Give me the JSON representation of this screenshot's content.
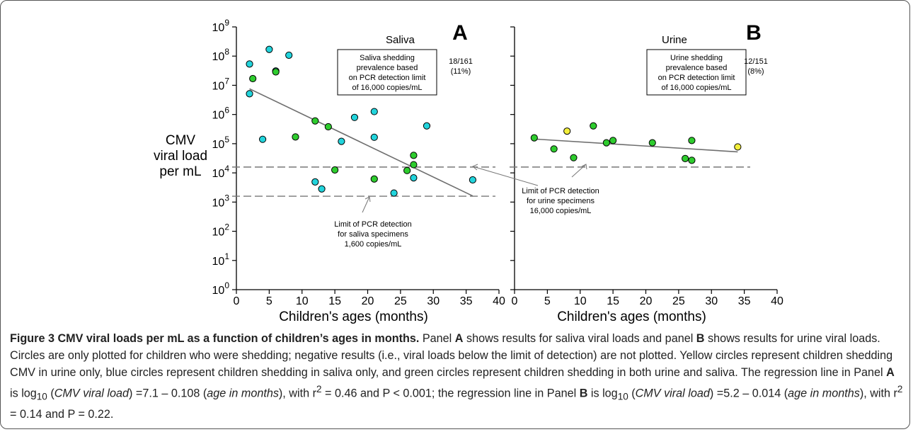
{
  "chart_data": [
    {
      "type": "scatter",
      "panel": "A",
      "title": "Saliva",
      "xlabel": "Children's ages (months)",
      "ylabel": [
        "CMV",
        "viral load",
        "per mL"
      ],
      "xlim": [
        0,
        40
      ],
      "ylim_log10": [
        0,
        9
      ],
      "xticks": [
        "0",
        "5",
        "10",
        "15",
        "20",
        "25",
        "30",
        "35",
        "40"
      ],
      "yticks": [
        "0",
        "1",
        "2",
        "3",
        "4",
        "5",
        "6",
        "7",
        "8",
        "9"
      ],
      "y_scale": "log10",
      "series": [
        {
          "color": "#22d4dc",
          "points": [
            {
              "x": 2,
              "y": 7.73
            },
            {
              "x": 2,
              "y": 6.71
            },
            {
              "x": 4,
              "y": 5.15
            },
            {
              "x": 5,
              "y": 8.23
            },
            {
              "x": 6,
              "y": 7.49
            },
            {
              "x": 8,
              "y": 8.03
            },
            {
              "x": 12,
              "y": 3.69
            },
            {
              "x": 13,
              "y": 3.45
            },
            {
              "x": 16,
              "y": 5.08
            },
            {
              "x": 18,
              "y": 5.9
            },
            {
              "x": 21,
              "y": 6.1
            },
            {
              "x": 21,
              "y": 5.22
            },
            {
              "x": 24,
              "y": 3.31
            },
            {
              "x": 27,
              "y": 3.83
            },
            {
              "x": 29,
              "y": 5.61
            },
            {
              "x": 36,
              "y": 3.76
            }
          ]
        },
        {
          "color": "#2ecc2e",
          "points": [
            {
              "x": 2.5,
              "y": 7.23
            },
            {
              "x": 6,
              "y": 7.46
            },
            {
              "x": 9,
              "y": 5.23
            },
            {
              "x": 12,
              "y": 5.78
            },
            {
              "x": 14,
              "y": 5.58
            },
            {
              "x": 15,
              "y": 4.1
            },
            {
              "x": 21,
              "y": 3.79
            },
            {
              "x": 26,
              "y": 4.08
            },
            {
              "x": 27,
              "y": 4.6
            },
            {
              "x": 27,
              "y": 4.28
            }
          ]
        }
      ],
      "regression": {
        "x": [
          2,
          36
        ],
        "y": [
          6.88,
          3.21
        ]
      },
      "detection_limits": [
        4.2,
        3.2
      ],
      "box": [
        "Saliva shedding",
        "prevalence based",
        "on PCR detection limit",
        "of 16,000 copies/mL"
      ],
      "box_stat": [
        "18/161",
        "(11%)"
      ],
      "annotation": [
        "Limit of PCR detection",
        "for saliva specimens",
        "1,600 copies/mL"
      ]
    },
    {
      "type": "scatter",
      "panel": "B",
      "title": "Urine",
      "xlabel": "Children's ages (months)",
      "xlim": [
        0,
        40
      ],
      "ylim_log10": [
        0,
        9
      ],
      "xticks": [
        "0",
        "5",
        "10",
        "15",
        "20",
        "25",
        "30",
        "35",
        "40"
      ],
      "y_scale": "log10",
      "series": [
        {
          "color": "#2ecc2e",
          "points": [
            {
              "x": 3,
              "y": 5.2
            },
            {
              "x": 6,
              "y": 4.82
            },
            {
              "x": 9,
              "y": 4.52
            },
            {
              "x": 12,
              "y": 5.61
            },
            {
              "x": 14,
              "y": 5.03
            },
            {
              "x": 15,
              "y": 5.11
            },
            {
              "x": 21,
              "y": 5.03
            },
            {
              "x": 26,
              "y": 4.49
            },
            {
              "x": 27,
              "y": 4.43
            },
            {
              "x": 27,
              "y": 5.11
            }
          ]
        },
        {
          "color": "#f3ef3b",
          "points": [
            {
              "x": 8,
              "y": 5.43
            },
            {
              "x": 34,
              "y": 4.89
            }
          ]
        }
      ],
      "regression": {
        "x": [
          3,
          34
        ],
        "y": [
          5.16,
          4.72
        ]
      },
      "detection_limits": [
        4.2
      ],
      "box": [
        "Urine shedding",
        "prevalence based",
        "on PCR detection limit",
        "of 16,000 copies/mL"
      ],
      "box_stat": [
        "12/151",
        "(8%)"
      ],
      "annotation": [
        "Limit of PCR detection",
        "for urine specimens",
        "16,000 copies/mL"
      ]
    }
  ],
  "caption": {
    "lead": "Figure 3 CMV viral loads per mL as a function of children’s ages in months.",
    "p1": " Panel ",
    "a1": "A",
    "p2": " shows results for saliva viral loads and panel ",
    "b1": "B",
    "p3": " shows results for urine viral loads. Circles are only plotted for children who were shedding; negative results (i.e., viral loads below the limit of detection) are not plotted. Yellow circles represent children shedding CMV in urine only, blue circles represent children shedding in saliva only, and green circles represent children shedding in both urine and saliva. The regression line in Panel ",
    "a2": "A",
    "p4": " is log",
    "sub1": "10",
    "p5": " (",
    "i1": "CMV viral load",
    "p6": ") =7.1 – 0.108 (",
    "i2": "age in months",
    "p7": "), with r",
    "sup1": "2",
    "p8": " = 0.46 and P < 0.001; the regression line in Panel ",
    "b2": "B",
    "p9": " is log",
    "sub2": "10",
    "p10": " (",
    "i3": "CMV viral load",
    "p11": ") =5.2 – 0.014 (",
    "i4": "age in months",
    "p12": "), with r",
    "sup2": "2",
    "p13": " = 0.14 and P = 0.22."
  }
}
